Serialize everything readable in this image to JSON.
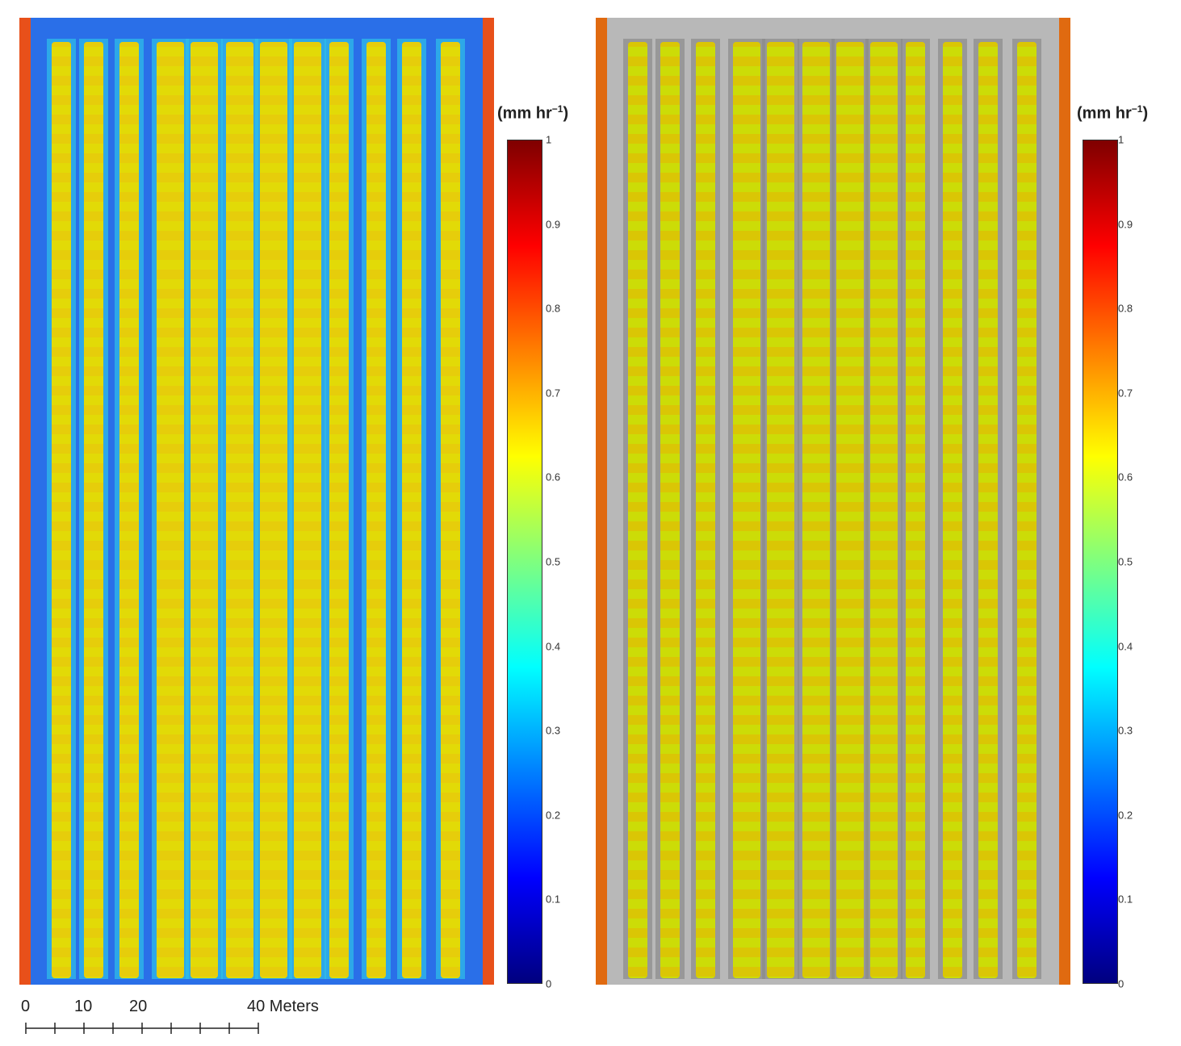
{
  "maps": [
    {
      "name": "left",
      "background": "blue-soil-colored"
    },
    {
      "name": "right",
      "background": "grayscale-soil"
    }
  ],
  "legend": {
    "unit_main": "(mm hr",
    "unit_sup": "−1",
    "unit_close": ")",
    "ticks": [
      "1",
      "0.9",
      "0.8",
      "0.7",
      "0.6",
      "0.5",
      "0.4",
      "0.3",
      "0.2",
      "0.1",
      "0"
    ],
    "colormap": "jet",
    "colors": [
      "#00007f",
      "#0000ff",
      "#007fff",
      "#00ffff",
      "#7fff7f",
      "#ffff00",
      "#ff7f00",
      "#ff0000",
      "#7f0000"
    ]
  },
  "scalebar": {
    "labels": [
      "0",
      "10",
      "20",
      "40 Meters"
    ]
  }
}
